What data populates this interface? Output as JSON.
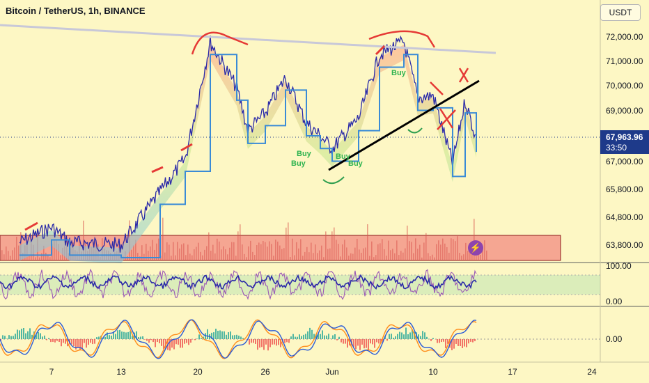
{
  "header": {
    "title": "Bitcoin / TetherUS, 1h, BINANCE",
    "currency": "USDT"
  },
  "price_tag": {
    "price": "67,963.96",
    "countdown": "33:50"
  },
  "chart_data": {
    "type": "candlestick",
    "x_ticks": [
      "7",
      "13",
      "20",
      "26",
      "Jun",
      "10",
      "17",
      "24"
    ],
    "y_ticks": [
      "72,000.00",
      "71,000.00",
      "70,000.00",
      "69,000.00",
      "67,000.00",
      "65,800.00",
      "64,800.00",
      "63,800.00"
    ],
    "price_series": [
      {
        "t": "6",
        "price": 63900
      },
      {
        "t": "7",
        "price": 64500
      },
      {
        "t": "9",
        "price": 63900
      },
      {
        "t": "13",
        "price": 63800
      },
      {
        "t": "16",
        "price": 65900
      },
      {
        "t": "19",
        "price": 67200
      },
      {
        "t": "21",
        "price": 71800
      },
      {
        "t": "23",
        "price": 70000
      },
      {
        "t": "24",
        "price": 68300
      },
      {
        "t": "26",
        "price": 69000
      },
      {
        "t": "27",
        "price": 70400
      },
      {
        "t": "28",
        "price": 68600
      },
      {
        "t": "30",
        "price": 68100
      },
      {
        "t": "Jun 1",
        "price": 67600
      },
      {
        "t": "Jun 3",
        "price": 68800
      },
      {
        "t": "Jun 5",
        "price": 71300
      },
      {
        "t": "Jun 7",
        "price": 71800
      },
      {
        "t": "Jun 8",
        "price": 69600
      },
      {
        "t": "Jun 10",
        "price": 69700
      },
      {
        "t": "Jun 11",
        "price": 67000
      },
      {
        "t": "Jun 12",
        "price": 69500
      },
      {
        "t": "Jun 13",
        "price": 67964
      }
    ],
    "annotations": [
      "Buy",
      "Buy",
      "Buy",
      "Buy",
      "Buy"
    ],
    "rsi_panel": {
      "y_ticks": [
        "100.00",
        "0.00"
      ]
    },
    "macd_panel": {
      "y_ticks": [
        "0.00"
      ]
    }
  },
  "colors": {
    "background": "#fdf7c4",
    "candles": "#2a2aa8",
    "trendline": "#000000",
    "resistance_line": "#c8c8d8",
    "annotation_red": "#e53935",
    "annotation_green": "#2e9e4f",
    "supply_zone": "#f28b82",
    "price_tag": "#1e3a8a"
  }
}
